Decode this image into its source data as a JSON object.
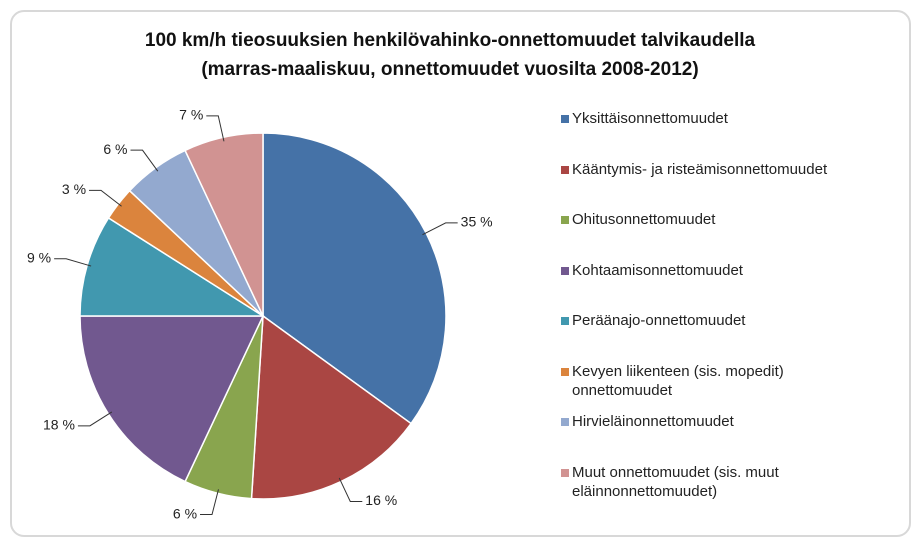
{
  "chart_data": {
    "type": "pie",
    "title": "100 km/h tieosuuksien henkilövahinko-onnettomuudet talvikaudella\n(marras-maaliskuu, onnettomuudet vuosilta 2008-2012)",
    "categories": [
      "Yksittäisonnettomuudet",
      "Kääntymis- ja risteämisonnettomuudet",
      "Ohitusonnettomuudet",
      "Kohtaamisonnettomuudet",
      "Peräänajo-onnettomuudet",
      "Kevyen liikenteen (sis. mopedit)\nonnettomuudet",
      "Hirvieläinonnettomuudet",
      "Muut onnettomuudet (sis. muut\neläinnonnettomuudet)"
    ],
    "values": [
      35,
      16,
      6,
      18,
      9,
      3,
      6,
      7
    ],
    "value_labels": [
      "35 %",
      "16 %",
      "6 %",
      "18 %",
      "9 %",
      "3 %",
      "6 %",
      "7 %"
    ],
    "colors": [
      "#4572a7",
      "#aa4643",
      "#89a54e",
      "#71588f",
      "#4198af",
      "#db843d",
      "#93a9cf",
      "#d19392"
    ],
    "legend": "right"
  }
}
